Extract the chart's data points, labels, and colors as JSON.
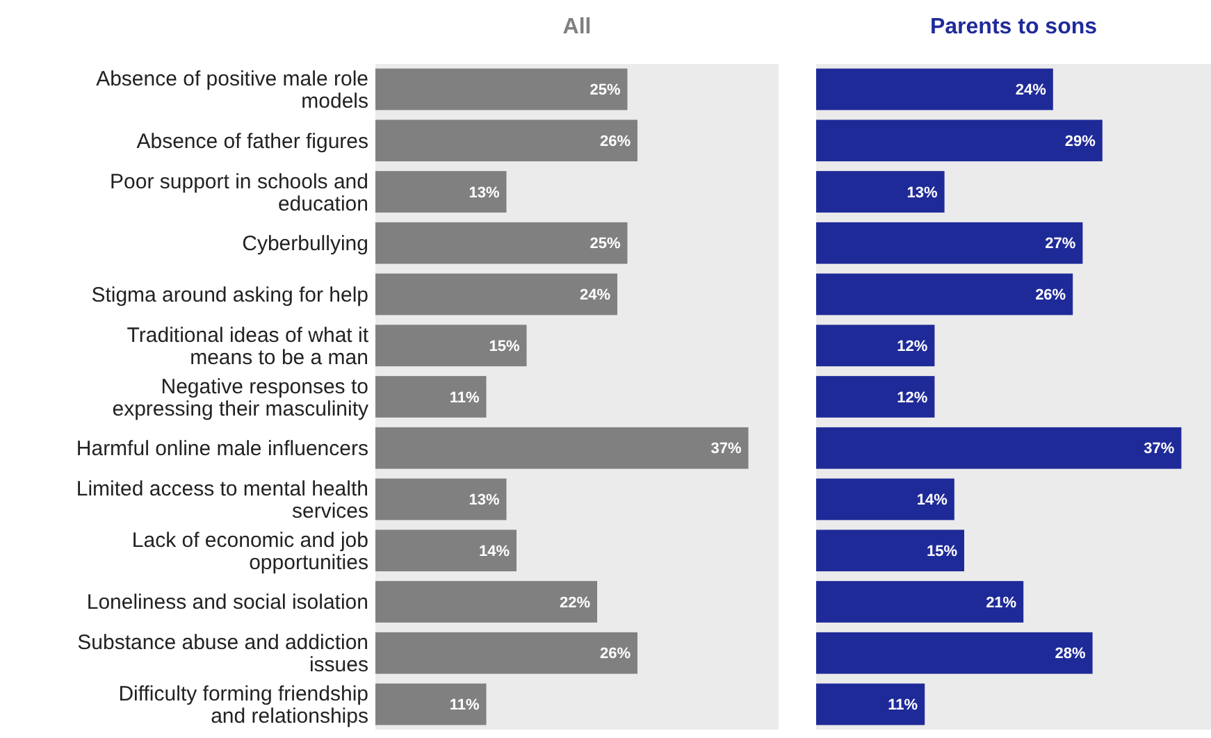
{
  "chart_data": [
    {
      "type": "bar",
      "orientation": "horizontal",
      "title": "All",
      "categories": [
        "Absence of positive male role models",
        "Absence of father figures",
        "Poor support in schools and education",
        "Cyberbullying",
        "Stigma around asking for help",
        "Traditional ideas of what it means to be a man",
        "Negative responses to expressing their masculinity",
        "Harmful online male influencers",
        "Limited access to mental health services",
        "Lack of economic and job opportunities",
        "Loneliness and social isolation",
        "Substance abuse and addiction issues",
        "Difficulty forming friendship and relationships"
      ],
      "series": [
        {
          "color": "#808080",
          "values": [
            25,
            26,
            13,
            25,
            24,
            15,
            11,
            37,
            13,
            14,
            22,
            26,
            11
          ],
          "value_labels": [
            "25%",
            "26%",
            "13%",
            "25%",
            "24%",
            "15%",
            "11%",
            "37%",
            "13%",
            "14%",
            "22%",
            "26%",
            "11%"
          ]
        }
      ],
      "xlim": [
        0,
        40
      ],
      "tick_labels": "y"
    },
    {
      "type": "bar",
      "orientation": "horizontal",
      "title": "Parents to sons",
      "categories": [
        null,
        null,
        null,
        null,
        null,
        null,
        null,
        null,
        null,
        null,
        null,
        null,
        null
      ],
      "series": [
        {
          "color": "#1f2a99",
          "values": [
            24,
            29,
            13,
            27,
            26,
            12,
            12,
            37,
            14,
            15,
            21,
            28,
            11
          ],
          "value_labels": [
            "24%",
            "29%",
            "13%",
            "27%",
            "26%",
            "12%",
            "12%",
            "37%",
            "14%",
            "15%",
            "21%",
            "28%",
            "11%"
          ]
        }
      ],
      "xlim": [
        0,
        40
      ],
      "tick_labels": false
    }
  ]
}
